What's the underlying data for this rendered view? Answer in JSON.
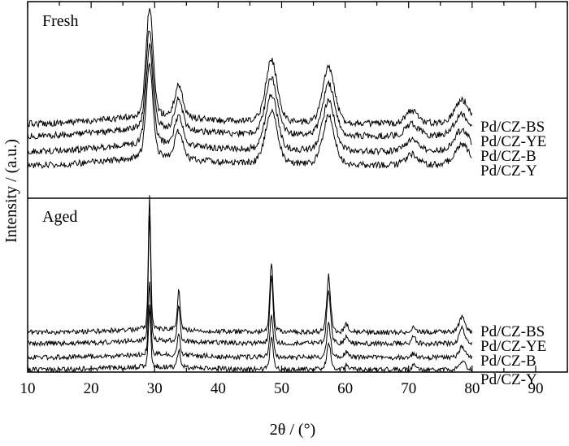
{
  "chart_data": {
    "type": "line",
    "xlabel": "2θ / (°)",
    "ylabel": "Intensity / (a.u.)",
    "xlim": [
      10,
      95
    ],
    "x_ticks": [
      "10",
      "20",
      "30",
      "40",
      "50",
      "60",
      "70",
      "80",
      "90"
    ],
    "grid": false,
    "panels": [
      {
        "label": "Fresh",
        "series": [
          {
            "name": "Pd/CZ-BS",
            "peaks": [
              [
                29.2,
                1.0
              ],
              [
                33.8,
                0.3
              ],
              [
                48.4,
                0.58
              ],
              [
                57.4,
                0.52
              ],
              [
                70.5,
                0.12
              ],
              [
                78.4,
                0.22
              ]
            ]
          },
          {
            "name": "Pd/CZ-YE",
            "peaks": [
              [
                29.2,
                0.92
              ],
              [
                33.8,
                0.28
              ],
              [
                48.4,
                0.53
              ],
              [
                57.4,
                0.48
              ],
              [
                70.5,
                0.11
              ],
              [
                78.4,
                0.2
              ]
            ]
          },
          {
            "name": "Pd/CZ-B",
            "peaks": [
              [
                29.2,
                0.9
              ],
              [
                33.8,
                0.27
              ],
              [
                48.4,
                0.52
              ],
              [
                57.4,
                0.47
              ],
              [
                70.5,
                0.11
              ],
              [
                78.4,
                0.2
              ]
            ]
          },
          {
            "name": "Pd/CZ-Y",
            "peaks": [
              [
                29.2,
                0.85
              ],
              [
                33.8,
                0.26
              ],
              [
                48.4,
                0.5
              ],
              [
                57.4,
                0.45
              ],
              [
                70.5,
                0.1
              ],
              [
                78.4,
                0.19
              ]
            ]
          }
        ]
      },
      {
        "label": "Aged",
        "series": [
          {
            "name": "Pd/CZ-BS",
            "peaks": [
              [
                29.2,
                1.0
              ],
              [
                33.8,
                0.3
              ],
              [
                48.4,
                0.52
              ],
              [
                57.4,
                0.42
              ],
              [
                60.2,
                0.06
              ],
              [
                70.8,
                0.05
              ],
              [
                78.4,
                0.12
              ]
            ]
          },
          {
            "name": "Pd/CZ-YE",
            "peaks": [
              [
                29.2,
                0.95
              ],
              [
                33.8,
                0.28
              ],
              [
                48.4,
                0.5
              ],
              [
                57.4,
                0.4
              ],
              [
                60.2,
                0.06
              ],
              [
                70.8,
                0.05
              ],
              [
                78.4,
                0.12
              ]
            ]
          },
          {
            "name": "Pd/CZ-B",
            "peaks": [
              [
                29.2,
                0.55
              ],
              [
                33.8,
                0.16
              ],
              [
                48.4,
                0.3
              ],
              [
                57.4,
                0.25
              ],
              [
                60.2,
                0.04
              ],
              [
                70.8,
                0.03
              ],
              [
                78.4,
                0.08
              ]
            ]
          },
          {
            "name": "Pd/CZ-Y",
            "peaks": [
              [
                29.2,
                0.45
              ],
              [
                33.8,
                0.13
              ],
              [
                48.4,
                0.25
              ],
              [
                57.4,
                0.21
              ],
              [
                60.2,
                0.03
              ],
              [
                70.8,
                0.03
              ],
              [
                78.4,
                0.07
              ]
            ]
          }
        ]
      }
    ]
  }
}
